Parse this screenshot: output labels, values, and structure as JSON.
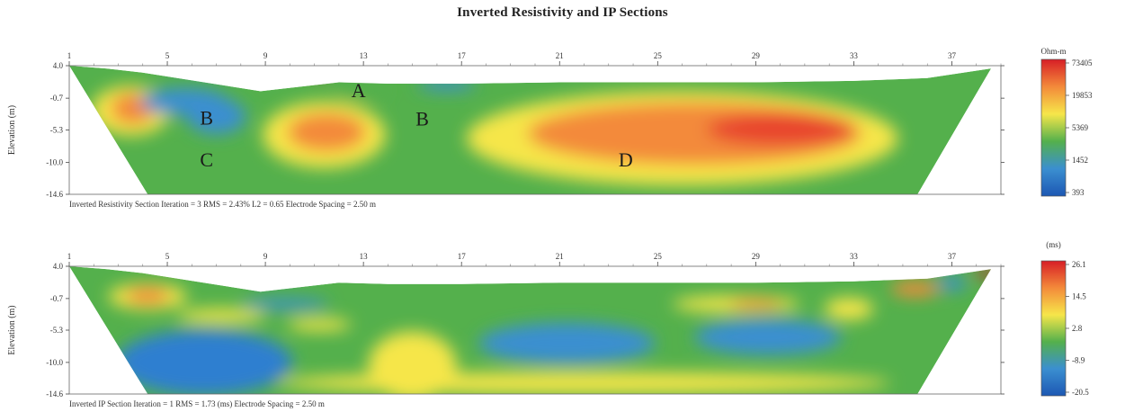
{
  "title": "Inverted Resistivity and IP Sections",
  "chart_data": [
    {
      "type": "heatmap",
      "name": "Inverted Resistivity Section",
      "x_ticks": [
        "1",
        "5",
        "9",
        "13",
        "17",
        "21",
        "25",
        "29",
        "33",
        "37"
      ],
      "xlim": [
        1,
        39
      ],
      "y_ticks": [
        "4.0",
        "-0.7",
        "-5.3",
        "-10.0",
        "-14.6"
      ],
      "y_values": [
        4.0,
        -0.7,
        -5.3,
        -10.0,
        -14.6
      ],
      "ylim": [
        -14.6,
        4.0
      ],
      "ylabel": "Elevation (m)",
      "colorbar": {
        "unit": "Ohm-m",
        "labels": [
          "73405",
          "19853",
          "5369",
          "1452",
          "393"
        ],
        "colors": [
          "#d71e26",
          "#f38a3a",
          "#f6e64a",
          "#54b04c",
          "#3b8fd0",
          "#1d57b3"
        ]
      },
      "footer": "Inverted Resistivity Section     Iteration = 3    RMS = 2.43%    L2 = 0.65    Electrode Spacing = 2.50 m",
      "annotations": [
        {
          "text": "A",
          "x": 12.8,
          "y": 0.5
        },
        {
          "text": "B",
          "x": 6.6,
          "y": -3.5
        },
        {
          "text": "B",
          "x": 15.4,
          "y": -3.6
        },
        {
          "text": "C",
          "x": 6.6,
          "y": -9.5
        },
        {
          "text": "D",
          "x": 23.7,
          "y": -9.5
        }
      ],
      "anomalies": [
        {
          "x": 3.5,
          "y": -2.5,
          "rx": 1.6,
          "ry": 3.6,
          "color": "#f6e64a"
        },
        {
          "x": 3.6,
          "y": -2.2,
          "rx": 0.9,
          "ry": 2.3,
          "color": "#f38a3a"
        },
        {
          "x": 5.7,
          "y": -1.2,
          "rx": 1.8,
          "ry": 2.0,
          "color": "#3b8fd0"
        },
        {
          "x": 7.0,
          "y": -3.3,
          "rx": 1.2,
          "ry": 2.6,
          "color": "#3b8fd0"
        },
        {
          "x": 11.4,
          "y": -6.0,
          "rx": 2.5,
          "ry": 4.8,
          "color": "#f6e64a"
        },
        {
          "x": 11.5,
          "y": -5.6,
          "rx": 1.6,
          "ry": 2.8,
          "color": "#f38a3a"
        },
        {
          "x": 12.9,
          "y": 0.5,
          "rx": 1.0,
          "ry": 1.3,
          "color": "#54b04c"
        },
        {
          "x": 26.0,
          "y": -6.5,
          "rx": 8.8,
          "ry": 6.8,
          "color": "#f6e64a"
        },
        {
          "x": 26.5,
          "y": -5.8,
          "rx": 6.8,
          "ry": 4.5,
          "color": "#f38a3a"
        },
        {
          "x": 30.0,
          "y": -5.2,
          "rx": 3.0,
          "ry": 2.3,
          "color": "#e8442f"
        },
        {
          "x": 16.4,
          "y": 1.2,
          "rx": 1.2,
          "ry": 0.8,
          "color": "#3b8fd0"
        },
        {
          "x": 11.2,
          "y": 3.0,
          "rx": 0.3,
          "ry": 0.6,
          "color": "#d71e26"
        }
      ]
    },
    {
      "type": "heatmap",
      "name": "Inverted IP Section",
      "x_ticks": [
        "1",
        "5",
        "9",
        "13",
        "17",
        "21",
        "25",
        "29",
        "33",
        "37"
      ],
      "xlim": [
        1,
        39
      ],
      "y_ticks": [
        "4.0",
        "-0.7",
        "-5.3",
        "-10.0",
        "-14.6"
      ],
      "y_values": [
        4.0,
        -0.7,
        -5.3,
        -10.0,
        -14.6
      ],
      "ylim": [
        -14.6,
        4.0
      ],
      "ylabel": "Elevation (m)",
      "colorbar": {
        "unit": "(ms)",
        "labels": [
          "26.1",
          "14.5",
          "2.8",
          "-8.9",
          "-20.5"
        ],
        "colors": [
          "#d71e26",
          "#f38a3a",
          "#f6e64a",
          "#54b04c",
          "#3b8fd0",
          "#1d57b3"
        ]
      },
      "footer": "Inverted IP Section     Iteration = 1    RMS = 1.73 (ms)    Electrode Spacing = 2.50 m",
      "anomalies": [
        {
          "x": 6.5,
          "y": -10.0,
          "rx": 3.6,
          "ry": 4.8,
          "color": "#2f7fd0"
        },
        {
          "x": 15.0,
          "y": -10.5,
          "rx": 1.8,
          "ry": 5.0,
          "color": "#f6e64a"
        },
        {
          "x": 21.3,
          "y": -7.2,
          "rx": 3.6,
          "ry": 3.0,
          "color": "#3b8fd0"
        },
        {
          "x": 29.5,
          "y": -6.3,
          "rx": 3.0,
          "ry": 2.6,
          "color": "#3b8fd0"
        },
        {
          "x": 22.0,
          "y": -13.0,
          "rx": 12.5,
          "ry": 1.6,
          "color": "#f6e64a"
        },
        {
          "x": 4.2,
          "y": -0.4,
          "rx": 1.6,
          "ry": 1.9,
          "color": "#f6e64a"
        },
        {
          "x": 4.2,
          "y": -0.3,
          "rx": 0.9,
          "ry": 1.2,
          "color": "#f38a3a"
        },
        {
          "x": 7.2,
          "y": -3.2,
          "rx": 1.8,
          "ry": 1.0,
          "color": "#f6e64a"
        },
        {
          "x": 11.2,
          "y": -4.5,
          "rx": 1.3,
          "ry": 0.9,
          "color": "#f6e64a"
        },
        {
          "x": 28.2,
          "y": -1.5,
          "rx": 2.6,
          "ry": 1.2,
          "color": "#f6e64a"
        },
        {
          "x": 29.0,
          "y": -1.5,
          "rx": 1.1,
          "ry": 0.7,
          "color": "#f38a3a"
        },
        {
          "x": 32.8,
          "y": -2.2,
          "rx": 1.0,
          "ry": 1.6,
          "color": "#f6e64a"
        },
        {
          "x": 35.5,
          "y": 0.7,
          "rx": 1.0,
          "ry": 1.1,
          "color": "#f38a3a"
        },
        {
          "x": 37.0,
          "y": 1.5,
          "rx": 0.6,
          "ry": 1.0,
          "color": "#3b8fd0"
        },
        {
          "x": 38.5,
          "y": 3.0,
          "rx": 0.6,
          "ry": 0.6,
          "color": "#d71e26"
        },
        {
          "x": 9.8,
          "y": -1.5,
          "rx": 1.8,
          "ry": 0.8,
          "color": "#3b8fd0"
        }
      ]
    }
  ]
}
